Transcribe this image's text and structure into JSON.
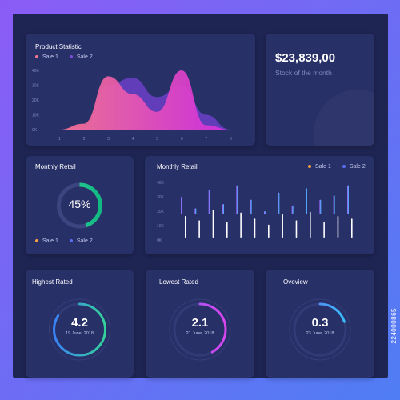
{
  "product_statistic": {
    "title": "Product Statistic",
    "legend": [
      {
        "label": "Sale 1",
        "color": "#f7758f"
      },
      {
        "label": "Sale 2",
        "color": "#7c4dd8"
      }
    ],
    "y_ticks": [
      "40K",
      "30K",
      "20K",
      "10K",
      "0K"
    ],
    "x_ticks": [
      "1",
      "2",
      "3",
      "4",
      "5",
      "6",
      "7",
      "8"
    ]
  },
  "stock": {
    "amount": "$23,839,00",
    "label": "Stock of the month"
  },
  "monthly_retail_donut": {
    "title": "Monthly Retail",
    "percent_text": "45%",
    "percent": 45,
    "legend": [
      {
        "label": "Sale 1",
        "color": "#f59e42"
      },
      {
        "label": "Sale 2",
        "color": "#5b6cf5"
      }
    ]
  },
  "monthly_retail_bars": {
    "title": "Monthly Retail",
    "legend": [
      {
        "label": "Sale 1",
        "color": "#f59e42"
      },
      {
        "label": "Sale 2",
        "color": "#5b6cf5"
      }
    ],
    "y_ticks": [
      "40K",
      "30K",
      "20K",
      "10K",
      "0K"
    ]
  },
  "highest_rated": {
    "title": "Highest Rated",
    "value": "4.2",
    "date": "19 June, 2018",
    "fraction": 0.84,
    "color_a": "#34d399",
    "color_b": "#3b82f6"
  },
  "lowest_rated": {
    "title": "Lowest Rated",
    "value": "2.1",
    "date": "21 June, 2018",
    "fraction": 0.42,
    "color_a": "#d946ef",
    "color_b": "#8b5cf6"
  },
  "overview": {
    "title": "Oveview",
    "value": "0.3",
    "date": "23 June, 2018",
    "fraction": 0.2,
    "color_a": "#38bdf8",
    "color_b": "#6366f1"
  },
  "side_code": "224000865",
  "chart_data": [
    {
      "type": "area",
      "title": "Product Statistic",
      "x": [
        1,
        2,
        3,
        4,
        5,
        6,
        7,
        8
      ],
      "ylim": [
        0,
        40000
      ],
      "series": [
        {
          "name": "Sale 1",
          "values": [
            0,
            4000,
            36000,
            24000,
            12000,
            40000,
            3000,
            0
          ]
        },
        {
          "name": "Sale 2",
          "values": [
            0,
            2000,
            30000,
            35000,
            22000,
            30000,
            10000,
            0
          ]
        }
      ]
    },
    {
      "type": "bar",
      "title": "Monthly Retail",
      "ylim": [
        0,
        40000
      ],
      "series": [
        {
          "name": "Sale 1",
          "values": [
            25000,
            20000,
            32000,
            18000,
            29000,
            22000,
            15000,
            27000,
            20000,
            30000,
            18000,
            25000,
            22000
          ]
        },
        {
          "name": "Sale 2",
          "values": [
            30000,
            22000,
            35000,
            25000,
            38000,
            28000,
            20000,
            33000,
            24000,
            36000,
            28000,
            31000,
            38000
          ]
        }
      ]
    }
  ]
}
